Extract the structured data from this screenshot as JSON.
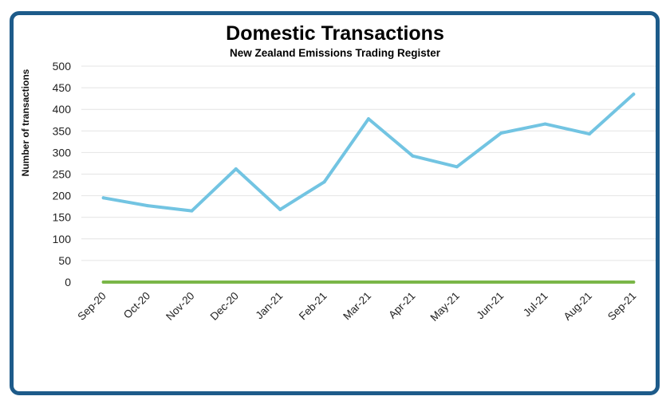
{
  "chart_data": {
    "type": "line",
    "title": "Domestic Transactions",
    "subtitle": "New Zealand Emissions Trading Register",
    "xlabel": "",
    "ylabel": "Number of transactions",
    "categories": [
      "Sep-20",
      "Oct-20",
      "Nov-20",
      "Dec-20",
      "Jan-21",
      "Feb-21",
      "Mar-21",
      "Apr-21",
      "May-21",
      "Jun-21",
      "Jul-21",
      "Aug-21",
      "Sep-21"
    ],
    "ylim": [
      0,
      500
    ],
    "yticks": [
      0,
      50,
      100,
      150,
      200,
      250,
      300,
      350,
      400,
      450,
      500
    ],
    "grid": true,
    "series": [
      {
        "values": [
          195,
          177,
          165,
          262,
          168,
          232,
          378,
          292,
          267,
          345,
          366,
          343,
          435
        ],
        "color": "#72c4e2"
      },
      {
        "values": [
          0,
          0,
          0,
          0,
          0,
          0,
          0,
          0,
          0,
          0,
          0,
          0,
          0
        ],
        "color": "#7ab648"
      }
    ]
  },
  "colors": {
    "frame": "#1d5b8a",
    "grid": "#e4e4e4"
  }
}
